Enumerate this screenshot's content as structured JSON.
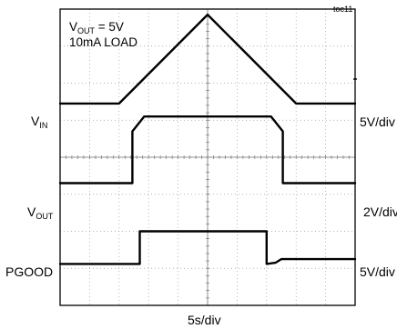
{
  "chart_data": {
    "type": "line",
    "figure_tag": "toc11",
    "annotations": {
      "line1": {
        "symbol": "V",
        "subscript": "OUT",
        "suffix": " = 5V"
      },
      "line2": "10mA LOAD"
    },
    "x_axis": {
      "label": "5s/div",
      "divisions": 10,
      "range_div": [
        0,
        10
      ]
    },
    "y_axis": {
      "divisions": 8,
      "range_div": [
        0,
        8
      ]
    },
    "grid": true,
    "series": [
      {
        "name": "VIN",
        "label": {
          "symbol": "V",
          "subscript": "IN"
        },
        "scale": "5V/div",
        "x": [
          0,
          2.0,
          5.0,
          8.0,
          10
        ],
        "y": [
          5.45,
          5.45,
          7.85,
          5.45,
          5.45
        ]
      },
      {
        "name": "VOUT",
        "label": {
          "symbol": "V",
          "subscript": "OUT"
        },
        "scale": "2V/div",
        "x": [
          0,
          2.45,
          2.45,
          2.85,
          7.15,
          7.55,
          7.55,
          10
        ],
        "y": [
          3.3,
          3.3,
          4.7,
          5.1,
          5.1,
          4.7,
          3.3,
          3.3
        ]
      },
      {
        "name": "PGOOD",
        "label": {
          "symbol": "PGOOD",
          "subscript": ""
        },
        "scale": "5V/div",
        "x": [
          0,
          2.7,
          2.7,
          7.0,
          7.0,
          7.3,
          7.5,
          10
        ],
        "y": [
          1.12,
          1.12,
          2.0,
          2.0,
          1.12,
          1.15,
          1.25,
          1.25
        ]
      }
    ]
  }
}
